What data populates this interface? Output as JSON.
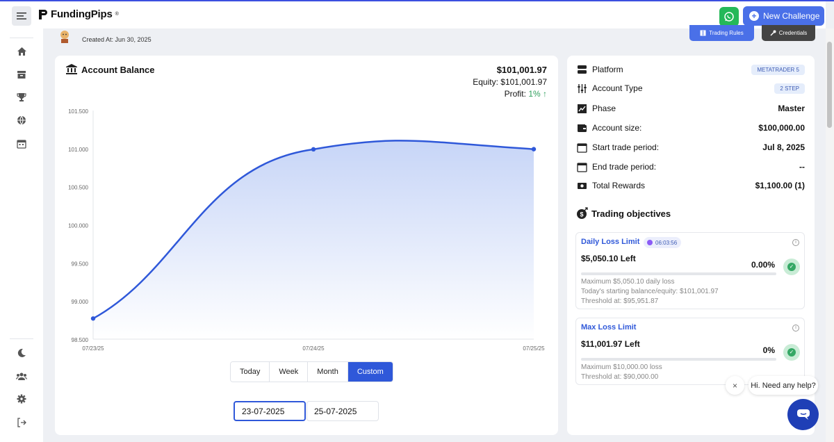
{
  "brand": {
    "name": "FundingPips",
    "reg": "®"
  },
  "header": {
    "new_challenge_label": "New Challenge"
  },
  "account": {
    "created_label": "Created At: Jun 30, 2025",
    "trading_rules_label": "Trading Rules",
    "credentials_label": "Credentials"
  },
  "balance": {
    "title": "Account Balance",
    "amount": "$101,001.97",
    "equity_label": "Equity:",
    "equity_value": "$101,001.97",
    "profit_label": "Profit:",
    "profit_value": "1% ↑"
  },
  "chart_data": {
    "type": "area",
    "x": [
      "07/23/25",
      "07/24/25",
      "07/25/25"
    ],
    "series": [
      {
        "values": [
          98780,
          101000,
          101001.97
        ]
      }
    ],
    "y_ticks": [
      "101.500",
      "101.000",
      "100.500",
      "100.000",
      "99.500",
      "99.000",
      "98.500"
    ],
    "ylim": [
      98500,
      101500
    ],
    "line_color": "#2f58d9",
    "fill_color": "#c7d5f7",
    "grid": false
  },
  "range": {
    "buttons": [
      "Today",
      "Week",
      "Month",
      "Custom"
    ],
    "active": "Custom"
  },
  "dates": {
    "from": "23-07-2025",
    "to": "25-07-2025"
  },
  "details": [
    {
      "label": "Platform",
      "value": "METATRADER 5",
      "kind": "badge",
      "icon": "server-icon"
    },
    {
      "label": "Account Type",
      "value": "2 STEP",
      "kind": "badge",
      "icon": "sliders-icon"
    },
    {
      "label": "Phase",
      "value": "Master",
      "kind": "text",
      "icon": "chart-icon"
    },
    {
      "label": "Account size:",
      "value": "$100,000.00",
      "kind": "text",
      "icon": "wallet-icon"
    },
    {
      "label": "Start trade period:",
      "value": "Jul 8, 2025",
      "kind": "text",
      "icon": "calendar-icon"
    },
    {
      "label": "End trade period:",
      "value": "--",
      "kind": "text",
      "icon": "calendar-icon"
    },
    {
      "label": "Total Rewards",
      "value": "$1,100.00 (1)",
      "kind": "text",
      "icon": "money-icon"
    }
  ],
  "objectives": {
    "title": "Trading objectives",
    "daily": {
      "name": "Daily Loss Limit",
      "timer": "06:03:56",
      "left": "$5,050.10 Left",
      "percent": "0.00%",
      "detail1": "Maximum $5,050.10 daily loss",
      "detail2": "Today's starting balance/equity: $101,001.97",
      "detail3": "Threshold at: $95,951.87"
    },
    "max": {
      "name": "Max Loss Limit",
      "left": "$11,001.97 Left",
      "percent": "0%",
      "detail1": "Maximum $10,000.00 loss",
      "detail2": "Threshold at: $90,000.00"
    }
  },
  "help": {
    "text": "Hi. Need any help?",
    "close": "×"
  }
}
